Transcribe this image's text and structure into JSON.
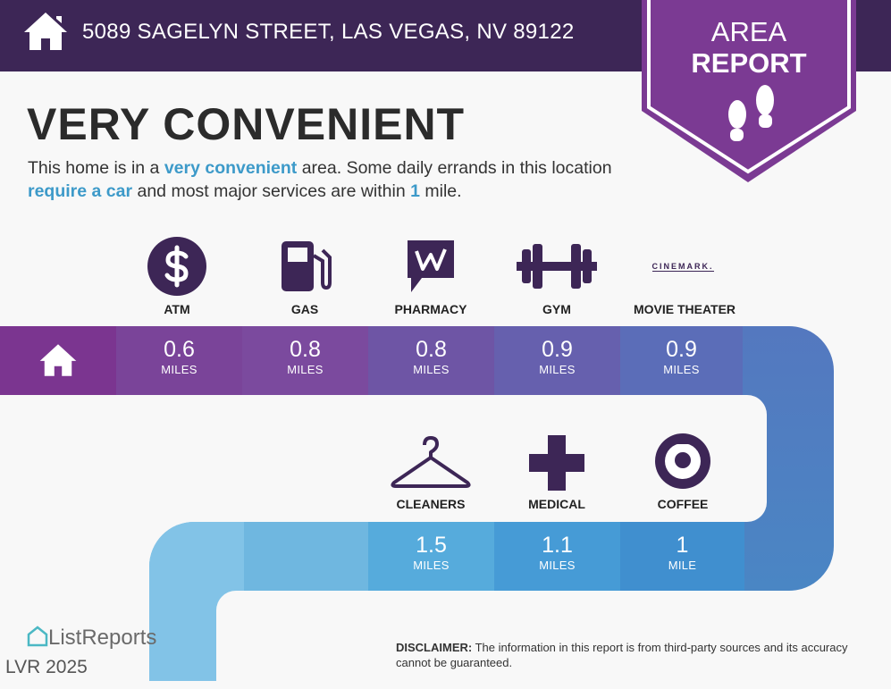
{
  "header": {
    "address": "5089 SAGELYN STREET, LAS VEGAS, NV 89122",
    "home_icon": "home-icon"
  },
  "badge": {
    "line1": "AREA",
    "line2": "REPORT",
    "icon": "footprints-icon"
  },
  "headline": "VERY CONVENIENT",
  "description": {
    "p1": "This home is in a ",
    "h1": "very convenient",
    "p2": " area. Some daily errands in this location ",
    "h2": "require a car",
    "p3": " and most major services are within ",
    "h3": "1",
    "p4": " mile."
  },
  "top_row": [
    {
      "label": "ATM",
      "value": "0.6",
      "unit": "MILES",
      "icon": "dollar-icon",
      "color": "#7a4499"
    },
    {
      "label": "GAS",
      "value": "0.8",
      "unit": "MILES",
      "icon": "gas-pump-icon",
      "color": "#7b4a9e"
    },
    {
      "label": "PHARMACY",
      "value": "0.8",
      "unit": "MILES",
      "icon": "walgreens-icon",
      "color": "#6e55a5"
    },
    {
      "label": "GYM",
      "value": "0.9",
      "unit": "MILES",
      "icon": "dumbbell-icon",
      "color": "#6660ae"
    },
    {
      "label": "MOVIE THEATER",
      "value": "0.9",
      "unit": "MILES",
      "icon": "cinemark-icon",
      "logo_text": "CINEMARK.",
      "color": "#5b6db8"
    }
  ],
  "bottom_row": [
    {
      "label": "CLEANERS",
      "value": "1.5",
      "unit": "MILES",
      "icon": "hanger-icon",
      "color": "#56abdc"
    },
    {
      "label": "MEDICAL",
      "value": "1.1",
      "unit": "MILES",
      "icon": "medical-cross-icon",
      "color": "#469bd6"
    },
    {
      "label": "COFFEE",
      "value": "1",
      "unit": "MILE",
      "icon": "starbucks-icon",
      "color": "#408fcf"
    }
  ],
  "footer": {
    "logo": "ListReports",
    "disclaimer_label": "DISCLAIMER:",
    "disclaimer_text": " The information in this report is from third-party sources and its accuracy cannot be guaranteed.",
    "watermark": "LVR 2025"
  }
}
